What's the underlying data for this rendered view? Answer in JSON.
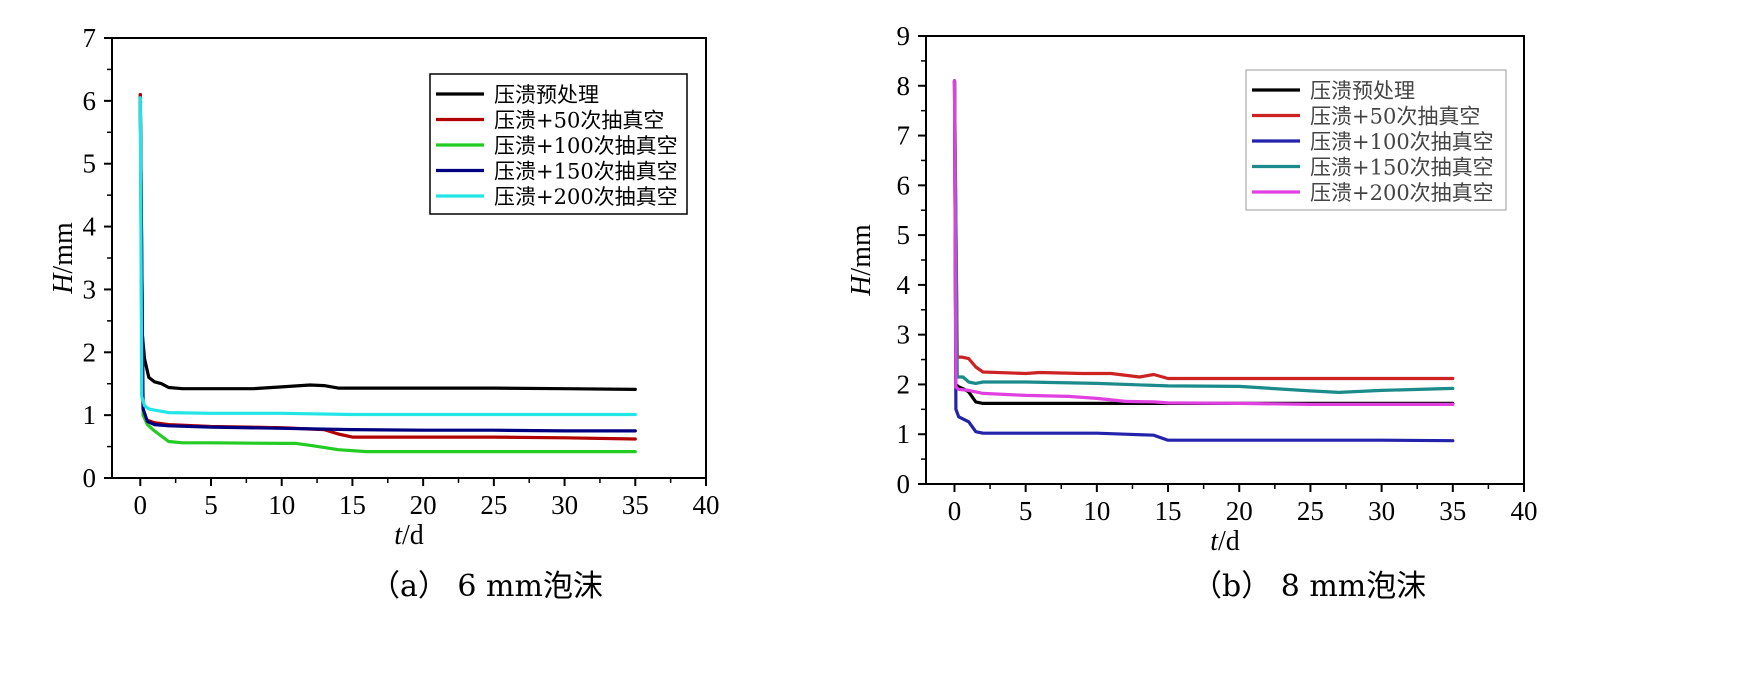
{
  "chart_data": [
    {
      "type": "line",
      "caption": "（a） 6 mm泡沫",
      "xlabel": "t/d",
      "ylabel": "H/mm",
      "xlim": [
        -2,
        40
      ],
      "ylim": [
        0,
        7
      ],
      "xticks": [
        0,
        5,
        10,
        15,
        20,
        25,
        30,
        35,
        40
      ],
      "yticks": [
        0,
        1,
        2,
        3,
        4,
        5,
        6,
        7
      ],
      "legend_position": "top-right",
      "series": [
        {
          "name": "压溃预处理",
          "color": "#000000",
          "x": [
            0,
            0.1,
            0.3,
            0.6,
            1,
            1.5,
            2,
            3,
            5,
            8,
            10,
            12,
            13,
            14,
            16,
            20,
            25,
            30,
            35
          ],
          "y": [
            6.1,
            2.4,
            1.9,
            1.6,
            1.53,
            1.5,
            1.44,
            1.42,
            1.42,
            1.42,
            1.45,
            1.48,
            1.47,
            1.43,
            1.43,
            1.43,
            1.43,
            1.42,
            1.41
          ]
        },
        {
          "name": "压溃+50次抽真空",
          "color": "#b00000",
          "x": [
            0,
            0.2,
            0.5,
            1,
            2,
            5,
            10,
            12,
            13,
            14,
            15,
            20,
            25,
            30,
            35
          ],
          "y": [
            6.1,
            1.0,
            0.92,
            0.88,
            0.85,
            0.82,
            0.8,
            0.78,
            0.77,
            0.7,
            0.65,
            0.65,
            0.65,
            0.64,
            0.62
          ]
        },
        {
          "name": "压溃+100次抽真空",
          "color": "#22cc22",
          "x": [
            0,
            0.2,
            0.5,
            1,
            2,
            3,
            5,
            10,
            11,
            12,
            14,
            16,
            20,
            25,
            30,
            35
          ],
          "y": [
            6.0,
            1.0,
            0.85,
            0.75,
            0.58,
            0.56,
            0.56,
            0.55,
            0.55,
            0.52,
            0.45,
            0.42,
            0.42,
            0.42,
            0.42,
            0.42
          ]
        },
        {
          "name": "压溃+150次抽真空",
          "color": "#000080",
          "x": [
            0,
            0.2,
            0.5,
            1,
            2,
            5,
            10,
            15,
            20,
            25,
            30,
            35
          ],
          "y": [
            6.0,
            1.1,
            0.9,
            0.85,
            0.83,
            0.81,
            0.79,
            0.77,
            0.76,
            0.76,
            0.75,
            0.75
          ]
        },
        {
          "name": "压溃+200次抽真空",
          "color": "#22e6e6",
          "x": [
            0,
            0.1,
            0.3,
            0.6,
            1,
            2,
            5,
            10,
            15,
            20,
            25,
            30,
            35
          ],
          "y": [
            6.05,
            1.3,
            1.15,
            1.1,
            1.08,
            1.04,
            1.03,
            1.03,
            1.01,
            1.01,
            1.01,
            1.01,
            1.01
          ]
        }
      ]
    },
    {
      "type": "line",
      "caption": "（b） 8 mm泡沫",
      "xlabel": "t/d",
      "ylabel": "H/mm",
      "xlim": [
        -2,
        40
      ],
      "ylim": [
        0,
        9
      ],
      "xticks": [
        0,
        5,
        10,
        15,
        20,
        25,
        30,
        35,
        40
      ],
      "yticks": [
        0,
        1,
        2,
        3,
        4,
        5,
        6,
        7,
        8,
        9
      ],
      "legend_position": "top-right",
      "series": [
        {
          "name": "压溃预处理",
          "color": "#000000",
          "x": [
            0,
            0.1,
            0.3,
            0.7,
            1,
            1.5,
            2,
            5,
            10,
            15,
            20,
            25,
            30,
            35
          ],
          "y": [
            8.1,
            2.0,
            1.95,
            1.9,
            1.85,
            1.65,
            1.62,
            1.62,
            1.62,
            1.62,
            1.62,
            1.62,
            1.62,
            1.62
          ]
        },
        {
          "name": "压溃+50次抽真空",
          "color": "#cc2222",
          "x": [
            0,
            0.2,
            0.5,
            1,
            1.5,
            2,
            5,
            6,
            9,
            11,
            13,
            14,
            15,
            20,
            25,
            30,
            35
          ],
          "y": [
            8.1,
            2.55,
            2.55,
            2.52,
            2.35,
            2.25,
            2.22,
            2.24,
            2.22,
            2.22,
            2.15,
            2.2,
            2.12,
            2.12,
            2.12,
            2.12,
            2.12
          ]
        },
        {
          "name": "压溃+100次抽真空",
          "color": "#2222aa",
          "x": [
            0,
            0.1,
            0.3,
            1,
            1.5,
            2,
            5,
            10,
            12,
            14,
            15,
            20,
            25,
            30,
            35
          ],
          "y": [
            8.1,
            1.5,
            1.35,
            1.25,
            1.05,
            1.02,
            1.02,
            1.02,
            1.0,
            0.98,
            0.88,
            0.88,
            0.88,
            0.88,
            0.87
          ]
        },
        {
          "name": "压溃+150次抽真空",
          "color": "#1a8a8a",
          "x": [
            0,
            0.2,
            0.6,
            1,
            1.5,
            2,
            5,
            10,
            15,
            20,
            25,
            27,
            30,
            35
          ],
          "y": [
            8.1,
            2.15,
            2.15,
            2.05,
            2.02,
            2.05,
            2.05,
            2.02,
            1.97,
            1.96,
            1.87,
            1.84,
            1.88,
            1.92
          ]
        },
        {
          "name": "压溃+200次抽真空",
          "color": "#e040e0",
          "x": [
            0,
            0.1,
            0.3,
            1,
            1.5,
            2,
            5,
            8,
            10,
            12,
            14,
            15,
            20,
            25,
            30,
            35
          ],
          "y": [
            8.1,
            1.95,
            1.9,
            1.88,
            1.85,
            1.82,
            1.78,
            1.76,
            1.72,
            1.66,
            1.65,
            1.63,
            1.62,
            1.6,
            1.6,
            1.6
          ]
        }
      ]
    }
  ]
}
